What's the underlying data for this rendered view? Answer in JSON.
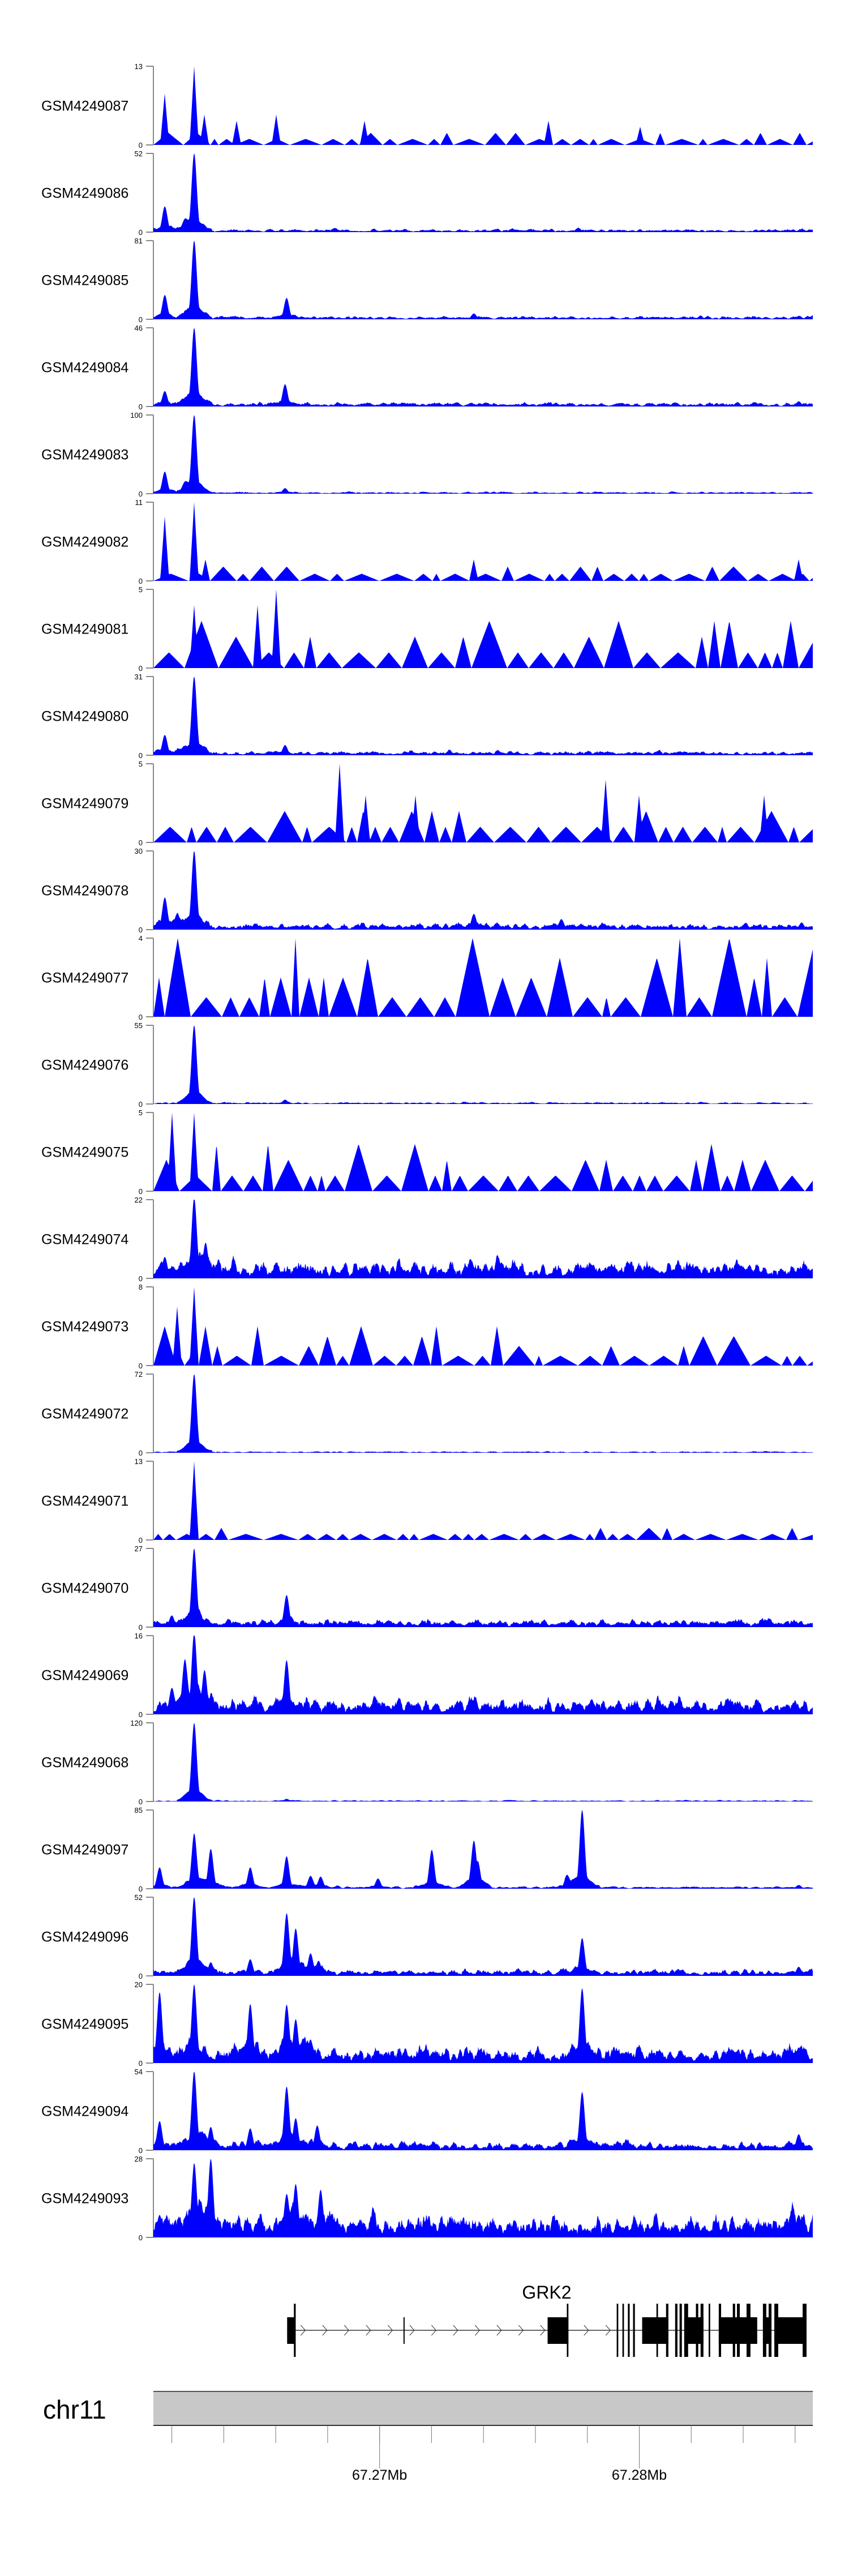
{
  "chart_data": {
    "type": "area",
    "title": "",
    "xlabel": "",
    "ylabel": "",
    "colors": {
      "coverage": "#0000FF",
      "axis": "#888888",
      "gene": "#000000",
      "ideogram": "#C8C8C8"
    },
    "region": {
      "chrom": "chr11",
      "start_mb": 67.26129,
      "end_mb": 67.28668
    },
    "axis": {
      "major_ticks": [
        {
          "pos_mb": 67.27,
          "label": "67.27Mb"
        },
        {
          "pos_mb": 67.28,
          "label": "67.28Mb"
        }
      ],
      "minor_tick_start_mb": 67.262,
      "minor_tick_step_mb": 0.002,
      "minor_tick_end_mb": 67.286
    },
    "tracks": [
      {
        "name": "GSM4249087",
        "ylim": [
          0,
          13
        ],
        "style": "sparse",
        "noise": 2,
        "peaks": [
          [
            67.26173,
            8.5
          ],
          [
            67.26286,
            13
          ],
          [
            67.26326,
            5
          ],
          [
            67.2645,
            4
          ],
          [
            67.26601,
            5
          ],
          [
            67.26943,
            4
          ],
          [
            67.27651,
            4
          ],
          [
            67.28004,
            3
          ]
        ]
      },
      {
        "name": "GSM4249086",
        "ylim": [
          0,
          52
        ],
        "style": "dense",
        "noise": 1.2,
        "peaks": [
          [
            67.26173,
            17
          ],
          [
            67.2625,
            5
          ],
          [
            67.26286,
            52
          ]
        ]
      },
      {
        "name": "GSM4249085",
        "ylim": [
          0,
          81
        ],
        "style": "dense",
        "noise": 2,
        "peaks": [
          [
            67.26173,
            25
          ],
          [
            67.26286,
            81
          ],
          [
            67.26642,
            22
          ],
          [
            67.27363,
            6
          ]
        ]
      },
      {
        "name": "GSM4249084",
        "ylim": [
          0,
          46
        ],
        "style": "dense",
        "noise": 1.5,
        "peaks": [
          [
            67.26173,
            9
          ],
          [
            67.26286,
            46
          ],
          [
            67.26636,
            13
          ],
          [
            67.28614,
            3
          ]
        ]
      },
      {
        "name": "GSM4249083",
        "ylim": [
          0,
          100
        ],
        "style": "dense",
        "noise": 1.5,
        "peaks": [
          [
            67.26173,
            28
          ],
          [
            67.2625,
            8
          ],
          [
            67.26286,
            100
          ],
          [
            67.26636,
            7
          ]
        ]
      },
      {
        "name": "GSM4249082",
        "ylim": [
          0,
          11
        ],
        "style": "sparse",
        "noise": 2,
        "peaks": [
          [
            67.26173,
            9
          ],
          [
            67.26286,
            11
          ],
          [
            67.2633,
            3
          ],
          [
            67.27363,
            3
          ],
          [
            67.28614,
            3
          ]
        ]
      },
      {
        "name": "GSM4249081",
        "ylim": [
          0,
          5
        ],
        "style": "sparse",
        "noise": 3,
        "peaks": [
          [
            67.26286,
            4
          ],
          [
            67.2653,
            4
          ],
          [
            67.26601,
            5
          ]
        ]
      },
      {
        "name": "GSM4249080",
        "ylim": [
          0,
          31
        ],
        "style": "dense",
        "noise": 1,
        "peaks": [
          [
            67.26173,
            8
          ],
          [
            67.26286,
            31
          ],
          [
            67.26636,
            4
          ]
        ]
      },
      {
        "name": "GSM4249079",
        "ylim": [
          0,
          5
        ],
        "style": "sparse",
        "noise": 2,
        "peaks": [
          [
            67.26847,
            5
          ],
          [
            67.26946,
            3
          ],
          [
            67.27138,
            3
          ],
          [
            67.27871,
            4
          ],
          [
            67.28,
            3
          ],
          [
            67.28481,
            3
          ]
        ]
      },
      {
        "name": "GSM4249078",
        "ylim": [
          0,
          30
        ],
        "style": "dense",
        "noise": 1.5,
        "peaks": [
          [
            67.26173,
            12
          ],
          [
            67.2622,
            6
          ],
          [
            67.26286,
            30
          ],
          [
            67.27363,
            6
          ],
          [
            67.277,
            4
          ]
        ]
      },
      {
        "name": "GSM4249077",
        "ylim": [
          0,
          4
        ],
        "style": "sparse",
        "noise": 4,
        "peaks": []
      },
      {
        "name": "GSM4249076",
        "ylim": [
          0,
          55
        ],
        "style": "dense",
        "noise": 0.8,
        "peaks": [
          [
            67.26286,
            55
          ],
          [
            67.26636,
            3
          ]
        ]
      },
      {
        "name": "GSM4249075",
        "ylim": [
          0,
          5
        ],
        "style": "sparse",
        "noise": 3,
        "peaks": [
          [
            67.262,
            5
          ],
          [
            67.26286,
            5
          ]
        ]
      },
      {
        "name": "GSM4249074",
        "ylim": [
          0,
          22
        ],
        "style": "dense",
        "noise": 3,
        "peaks": [
          [
            67.26173,
            6
          ],
          [
            67.26286,
            22
          ],
          [
            67.2633,
            10
          ]
        ]
      },
      {
        "name": "GSM4249073",
        "ylim": [
          0,
          8
        ],
        "style": "sparse",
        "noise": 4,
        "peaks": [
          [
            67.2622,
            6
          ],
          [
            67.26286,
            8
          ]
        ]
      },
      {
        "name": "GSM4249072",
        "ylim": [
          0,
          72
        ],
        "style": "dense",
        "noise": 0.8,
        "peaks": [
          [
            67.26286,
            72
          ]
        ]
      },
      {
        "name": "GSM4249071",
        "ylim": [
          0,
          13
        ],
        "style": "sparse",
        "noise": 2,
        "peaks": [
          [
            67.26286,
            13
          ]
        ]
      },
      {
        "name": "GSM4249070",
        "ylim": [
          0,
          27
        ],
        "style": "dense",
        "noise": 1.5,
        "peaks": [
          [
            67.262,
            4
          ],
          [
            67.26286,
            27
          ],
          [
            67.26642,
            11
          ]
        ]
      },
      {
        "name": "GSM4249069",
        "ylim": [
          0,
          16
        ],
        "style": "dense",
        "noise": 2,
        "peaks": [
          [
            67.262,
            5
          ],
          [
            67.2625,
            10
          ],
          [
            67.26286,
            16
          ],
          [
            67.26326,
            9
          ],
          [
            67.26642,
            11
          ]
        ]
      },
      {
        "name": "GSM4249068",
        "ylim": [
          0,
          120
        ],
        "style": "dense",
        "noise": 1.2,
        "peaks": [
          [
            67.26286,
            120
          ],
          [
            67.26642,
            4
          ]
        ]
      },
      {
        "name": "GSM4249097",
        "ylim": [
          0,
          85
        ],
        "style": "dense",
        "noise": 1.5,
        "peaks": [
          [
            67.26153,
            23
          ],
          [
            67.26286,
            59
          ],
          [
            67.2635,
            43
          ],
          [
            67.26502,
            23
          ],
          [
            67.26642,
            35
          ],
          [
            67.26734,
            13
          ],
          [
            67.26773,
            13
          ],
          [
            67.26994,
            11
          ],
          [
            67.27201,
            42
          ],
          [
            67.27363,
            48
          ],
          [
            67.27378,
            30
          ],
          [
            67.27721,
            13
          ],
          [
            67.2778,
            85
          ],
          [
            67.28614,
            4
          ]
        ]
      },
      {
        "name": "GSM4249096",
        "ylim": [
          0,
          52
        ],
        "style": "dense",
        "noise": 2.5,
        "peaks": [
          [
            67.26286,
            52
          ],
          [
            67.2635,
            9
          ],
          [
            67.26502,
            11
          ],
          [
            67.26642,
            39
          ],
          [
            67.26677,
            31
          ],
          [
            67.26734,
            14
          ],
          [
            67.26765,
            10
          ],
          [
            67.2778,
            25
          ],
          [
            67.28614,
            6
          ]
        ]
      },
      {
        "name": "GSM4249095",
        "ylim": [
          0,
          20
        ],
        "style": "dense",
        "noise": 2.5,
        "peaks": [
          [
            67.26153,
            18
          ],
          [
            67.26286,
            20
          ],
          [
            67.26502,
            15
          ],
          [
            67.26642,
            14
          ],
          [
            67.26677,
            11
          ],
          [
            67.26734,
            6
          ],
          [
            67.2778,
            19
          ],
          [
            67.28614,
            4
          ]
        ]
      },
      {
        "name": "GSM4249094",
        "ylim": [
          0,
          54
        ],
        "style": "dense",
        "noise": 3.5,
        "peaks": [
          [
            67.26153,
            20
          ],
          [
            67.26286,
            54
          ],
          [
            67.2635,
            16
          ],
          [
            67.26502,
            15
          ],
          [
            67.26642,
            42
          ],
          [
            67.26677,
            22
          ],
          [
            67.2676,
            17
          ],
          [
            67.2778,
            40
          ],
          [
            67.28614,
            11
          ]
        ]
      },
      {
        "name": "GSM4249093",
        "ylim": [
          0,
          28
        ],
        "style": "dense",
        "noise": 5,
        "peaks": [
          [
            67.26153,
            8
          ],
          [
            67.26286,
            26
          ],
          [
            67.2635,
            28
          ],
          [
            67.26642,
            14
          ],
          [
            67.26677,
            19
          ],
          [
            67.26773,
            17
          ],
          [
            67.28614,
            8
          ]
        ]
      }
    ],
    "gene": {
      "name": "GRK2",
      "strand": "+",
      "transcript_start_mb": 67.26644,
      "transcript_end_mb": 67.28644,
      "features": [
        {
          "type": "box",
          "start": 67.26644,
          "end": 67.26675
        },
        {
          "type": "tall",
          "start": 67.2667,
          "end": 67.26677
        },
        {
          "type": "box",
          "start": 67.27092,
          "end": 67.27096
        },
        {
          "type": "box",
          "start": 67.27647,
          "end": 67.27727
        },
        {
          "type": "tall",
          "start": 67.27721,
          "end": 67.27727
        },
        {
          "type": "tall",
          "start": 67.27913,
          "end": 67.27919
        },
        {
          "type": "tall",
          "start": 67.27935,
          "end": 67.27941
        },
        {
          "type": "tall",
          "start": 67.27956,
          "end": 67.27963
        },
        {
          "type": "tall",
          "start": 67.27976,
          "end": 67.27983
        },
        {
          "type": "box",
          "start": 67.28011,
          "end": 67.28112
        },
        {
          "type": "tall",
          "start": 67.28066,
          "end": 67.28072
        },
        {
          "type": "tall",
          "start": 67.28103,
          "end": 67.28112
        },
        {
          "type": "tall",
          "start": 67.28138,
          "end": 67.28147
        },
        {
          "type": "tall",
          "start": 67.28155,
          "end": 67.28164
        },
        {
          "type": "box",
          "start": 67.28173,
          "end": 67.28247
        },
        {
          "type": "tall",
          "start": 67.28173,
          "end": 67.28188
        },
        {
          "type": "tall",
          "start": 67.28218,
          "end": 67.28227
        },
        {
          "type": "tall",
          "start": 67.28236,
          "end": 67.28247
        },
        {
          "type": "tall",
          "start": 67.28267,
          "end": 67.28273
        },
        {
          "type": "box",
          "start": 67.28306,
          "end": 67.28454
        },
        {
          "type": "tall",
          "start": 67.28306,
          "end": 67.28315
        },
        {
          "type": "tall",
          "start": 67.2836,
          "end": 67.28369
        },
        {
          "type": "tall",
          "start": 67.28376,
          "end": 67.28387
        },
        {
          "type": "tall",
          "start": 67.28413,
          "end": 67.28428
        },
        {
          "type": "box",
          "start": 67.28476,
          "end": 67.28509
        },
        {
          "type": "tall",
          "start": 67.28476,
          "end": 67.28489
        },
        {
          "type": "tall",
          "start": 67.28498,
          "end": 67.28509
        },
        {
          "type": "box",
          "start": 67.2852,
          "end": 67.28644
        },
        {
          "type": "tall",
          "start": 67.2852,
          "end": 67.28535
        },
        {
          "type": "tall",
          "start": 67.28629,
          "end": 67.28644
        }
      ]
    }
  }
}
